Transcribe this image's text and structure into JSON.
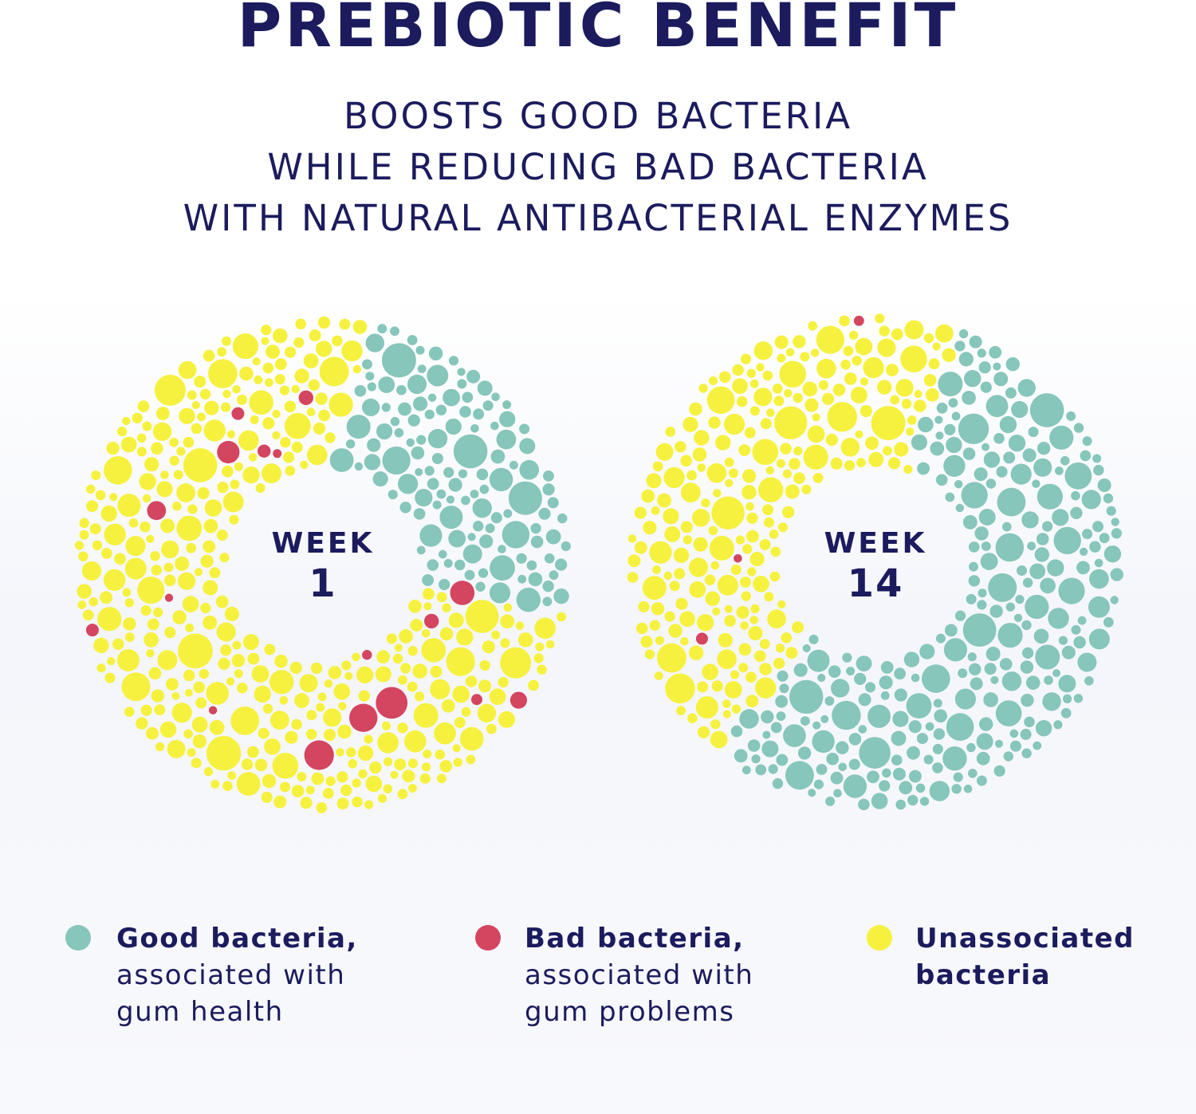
{
  "title": "PREBIOTIC BENEFIT",
  "subtitle": {
    "line1": "BOOSTS GOOD BACTERIA",
    "line2": "WHILE REDUCING BAD BACTERIA",
    "line3": "WITH NATURAL ANTIBACTERIAL ENZYMES"
  },
  "colors": {
    "good": "#86c6bb",
    "bad": "#d4455f",
    "unassociated": "#f6f13e",
    "text": "#1b1b5e"
  },
  "donuts": [
    {
      "week_word": "WEEK",
      "week_number": "1",
      "good_fraction": 0.18,
      "bad_count": 17
    },
    {
      "week_word": "WEEK",
      "week_number": "14",
      "good_fraction": 0.55,
      "bad_count": 3
    }
  ],
  "legend": {
    "good": {
      "bold": "Good bacteria,",
      "line2": "associated with",
      "line3": "gum health"
    },
    "bad": {
      "bold": "Bad bacteria,",
      "line2": "associated with",
      "line3": "gum problems"
    },
    "unassociated": {
      "bold_line1": "Unassociated",
      "bold_line2": "bacteria"
    }
  }
}
